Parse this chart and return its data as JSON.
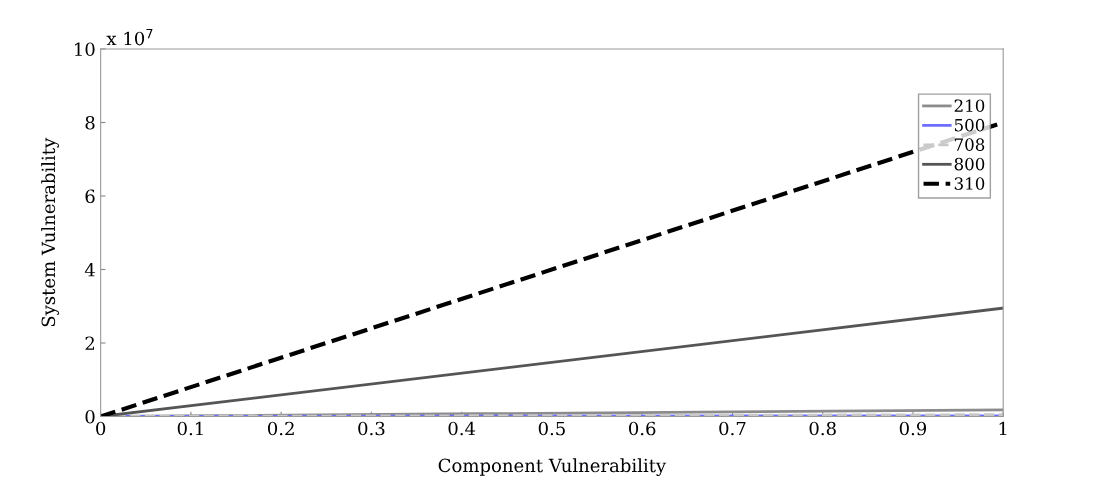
{
  "chart_data": {
    "type": "line",
    "xlabel": "Component Vulnerability",
    "ylabel": "System Vulnerability",
    "annotations": [
      "x 10$^{7}$"
    ],
    "x": [
      0,
      1
    ],
    "xlim": [
      0,
      1
    ],
    "xticks": [
      0,
      0.1,
      0.2,
      0.3,
      0.4,
      0.5,
      0.6,
      0.7,
      0.8,
      0.9,
      1
    ],
    "ylim": [
      0,
      10
    ],
    "yticks": [
      0,
      2,
      4,
      6,
      8,
      10
    ],
    "grid": false,
    "legend": "top right",
    "series": [
      {
        "name": "210",
        "color": "#8c8c8c",
        "values": [
          0,
          0.18
        ],
        "line_style": "solid"
      },
      {
        "name": "500",
        "color": "#6f6fff",
        "values": [
          0,
          0.02
        ],
        "line_style": "solid"
      },
      {
        "name": "708",
        "color": "#c8c8c8",
        "values": [
          0,
          0.05
        ],
        "line_style": "dashed"
      },
      {
        "name": "800",
        "color": "#555555",
        "values": [
          0,
          2.95
        ],
        "line_style": "solid"
      },
      {
        "name": "310",
        "color": "#000000",
        "values": [
          0,
          8.0
        ],
        "line_style": "dashed"
      }
    ]
  }
}
